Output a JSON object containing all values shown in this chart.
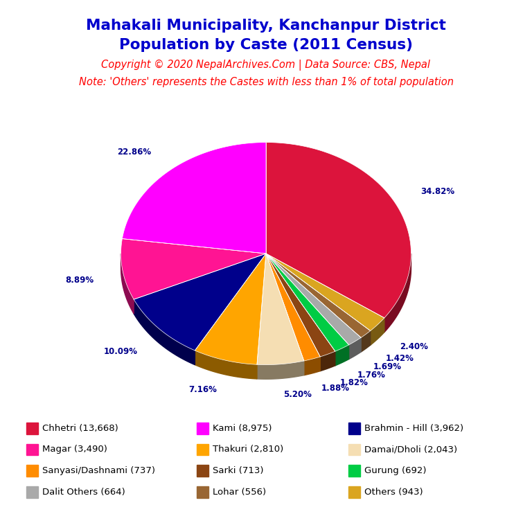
{
  "title_line1": "Mahakali Municipality, Kanchanpur District",
  "title_line2": "Population by Caste (2011 Census)",
  "title_color": "#0000CD",
  "copyright_text": "Copyright © 2020 NepalArchives.Com | Data Source: CBS, Nepal",
  "note_text": "Note: 'Others' represents the Castes with less than 1% of total population",
  "red_text_color": "#FF0000",
  "label_color": "#00008B",
  "castes": [
    "Chhetri (13,668)",
    "Kami (8,975)",
    "Brahmin - Hill (3,962)",
    "Magar (3,490)",
    "Thakuri (2,810)",
    "Damai/Dholi (2,043)",
    "Sanyasi/Dashnami (737)",
    "Sarki (713)",
    "Gurung (692)",
    "Dalit Others (664)",
    "Lohar (556)",
    "Others (943)"
  ],
  "values": [
    13668,
    8975,
    3962,
    3490,
    2810,
    2043,
    737,
    713,
    692,
    664,
    556,
    943
  ],
  "colors": [
    "#DC143C",
    "#FF00FF",
    "#00008B",
    "#FF1493",
    "#FFA500",
    "#F5DEB3",
    "#FF8C00",
    "#8B4513",
    "#00CC44",
    "#A9A9A9",
    "#996633",
    "#DAA520"
  ],
  "percentages": [
    34.82,
    22.86,
    10.09,
    8.89,
    7.16,
    5.2,
    1.88,
    1.82,
    1.76,
    1.69,
    1.42,
    2.4
  ],
  "legend_items": [
    [
      "Chhetri (13,668)",
      "#DC143C"
    ],
    [
      "Magar (3,490)",
      "#FF1493"
    ],
    [
      "Sanyasi/Dashnami (737)",
      "#FF8C00"
    ],
    [
      "Dalit Others (664)",
      "#A9A9A9"
    ],
    [
      "Kami (8,975)",
      "#FF00FF"
    ],
    [
      "Thakuri (2,810)",
      "#FFA500"
    ],
    [
      "Sarki (713)",
      "#8B4513"
    ],
    [
      "Lohar (556)",
      "#996633"
    ],
    [
      "Brahmin - Hill (3,962)",
      "#00008B"
    ],
    [
      "Damai/Dholi (2,043)",
      "#F5DEB3"
    ],
    [
      "Gurung (692)",
      "#00CC44"
    ],
    [
      "Others (943)",
      "#DAA520"
    ]
  ]
}
